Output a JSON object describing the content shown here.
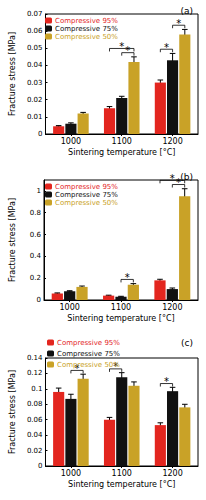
{
  "chart_data": [
    {
      "type": "bar",
      "title": "(a)",
      "xlabel": "Sintering temperature [°C]",
      "ylabel": "Fracture stress [MPa]",
      "categories": [
        "1000",
        "1100",
        "1200"
      ],
      "series": [
        {
          "name": "Compressive 95%",
          "color": "#e3261f",
          "values": [
            0.0045,
            0.015,
            0.03
          ],
          "errors": [
            0.0004,
            0.001,
            0.0015
          ]
        },
        {
          "name": "Compressive 75%",
          "color": "#111111",
          "values": [
            0.006,
            0.021,
            0.043
          ],
          "errors": [
            0.0005,
            0.001,
            0.004
          ]
        },
        {
          "name": "Compressive 50%",
          "color": "#c9a227",
          "values": [
            0.012,
            0.042,
            0.058
          ],
          "errors": [
            0.0006,
            0.003,
            0.003
          ]
        }
      ],
      "annotations": [
        {
          "category": "1100",
          "from": "Compressive 75%",
          "to": "Compressive 50%",
          "text": "*"
        },
        {
          "category": "1100",
          "from": "Compressive 95%",
          "to": "Compressive 50%",
          "text": "*"
        },
        {
          "category": "1200",
          "from": "Compressive 95%",
          "to": "Compressive 75%",
          "text": "*"
        },
        {
          "category": "1200",
          "from": "Compressive 75%",
          "to": "Compressive 50%",
          "text": "*"
        }
      ],
      "ylim": [
        0,
        0.07
      ],
      "yticks": [
        0,
        0.01,
        0.02,
        0.03,
        0.04,
        0.05,
        0.06,
        0.07
      ],
      "grid": false,
      "legend": "upper left"
    },
    {
      "type": "bar",
      "title": "(b)",
      "xlabel": "Sintering temperature [°C]",
      "ylabel": "Fracture stress [MPa]",
      "categories": [
        "1000",
        "1100",
        "1200"
      ],
      "series": [
        {
          "name": "Compressive 95%",
          "color": "#e3261f",
          "values": [
            0.06,
            0.04,
            0.18
          ],
          "errors": [
            0.005,
            0.004,
            0.01
          ]
        },
        {
          "name": "Compressive 75%",
          "color": "#111111",
          "values": [
            0.08,
            0.03,
            0.1
          ],
          "errors": [
            0.005,
            0.004,
            0.01
          ]
        },
        {
          "name": "Compressive 50%",
          "color": "#c9a227",
          "values": [
            0.12,
            0.14,
            0.95
          ],
          "errors": [
            0.008,
            0.01,
            0.07
          ]
        }
      ],
      "annotations": [
        {
          "category": "1100",
          "from": "Compressive 75%",
          "to": "Compressive 50%",
          "text": "*"
        },
        {
          "category": "1200",
          "from": "Compressive 75%",
          "to": "Compressive 50%",
          "text": "*"
        },
        {
          "category": "1200",
          "from": "Compressive 95%",
          "to": "Compressive 50%",
          "text": "*"
        }
      ],
      "ylim": [
        0,
        1.1
      ],
      "yticks": [
        0,
        0.2,
        0.4,
        0.6,
        0.8,
        1
      ],
      "grid": false,
      "legend": "upper left"
    },
    {
      "type": "bar",
      "title": "(c)",
      "xlabel": "Sintering temperature [°C]",
      "ylabel": "Fracture stress [MPa]",
      "categories": [
        "1000",
        "1100",
        "1200"
      ],
      "series": [
        {
          "name": "Compressive 95%",
          "color": "#e3261f",
          "values": [
            0.096,
            0.06,
            0.053
          ],
          "errors": [
            0.005,
            0.003,
            0.003
          ]
        },
        {
          "name": "Compressive 75%",
          "color": "#111111",
          "values": [
            0.087,
            0.115,
            0.097
          ],
          "errors": [
            0.006,
            0.006,
            0.005
          ]
        },
        {
          "name": "Compressive 50%",
          "color": "#c9a227",
          "values": [
            0.113,
            0.104,
            0.076
          ],
          "errors": [
            0.006,
            0.005,
            0.004
          ]
        }
      ],
      "annotations": [
        {
          "category": "1000",
          "from": "Compressive 75%",
          "to": "Compressive 50%",
          "text": "*"
        },
        {
          "category": "1100",
          "from": "Compressive 95%",
          "to": "Compressive 75%",
          "text": "*"
        },
        {
          "category": "1200",
          "from": "Compressive 95%",
          "to": "Compressive 75%",
          "text": "*"
        }
      ],
      "ylim": [
        0,
        0.14
      ],
      "yticks": [
        0,
        0.02,
        0.04,
        0.06,
        0.08,
        0.1,
        0.12,
        0.14
      ],
      "grid": false,
      "legend": "top"
    }
  ]
}
